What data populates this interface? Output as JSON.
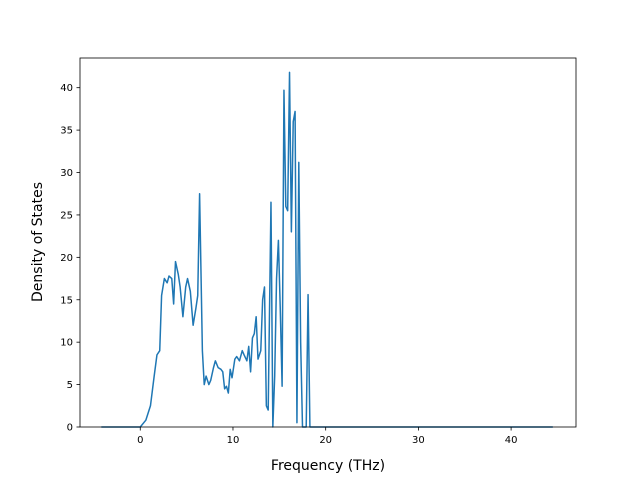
{
  "chart_data": {
    "type": "line",
    "title": "",
    "xlabel": "Frequency (THz)",
    "ylabel": "Density of States",
    "xlim": [
      -6.5,
      47
    ],
    "ylim": [
      0,
      43.5
    ],
    "xticks": [
      0,
      10,
      20,
      30,
      40
    ],
    "yticks": [
      0,
      5,
      10,
      15,
      20,
      25,
      30,
      35,
      40
    ],
    "grid": false,
    "legend": "none",
    "line_color": "#1f77b4",
    "series": [
      {
        "x": [
          -4.2,
          0.0,
          0.6,
          1.1,
          1.5,
          1.8,
          2.1,
          2.3,
          2.6,
          2.9,
          3.1,
          3.4,
          3.6,
          3.8,
          4.1,
          4.3,
          4.6,
          4.9,
          5.1,
          5.4,
          5.7,
          6.0,
          6.2,
          6.4,
          6.7,
          6.9,
          7.1,
          7.4,
          7.6,
          7.9,
          8.1,
          8.4,
          8.7,
          8.9,
          9.1,
          9.3,
          9.5,
          9.7,
          9.9,
          10.2,
          10.4,
          10.7,
          11.0,
          11.2,
          11.5,
          11.7,
          11.9,
          12.1,
          12.3,
          12.5,
          12.7,
          13.0,
          13.2,
          13.4,
          13.6,
          13.8,
          14.1,
          14.3,
          14.5,
          14.7,
          14.9,
          15.1,
          15.3,
          15.5,
          15.7,
          15.9,
          16.1,
          16.3,
          16.5,
          16.7,
          16.9,
          17.1,
          17.3,
          17.5,
          17.7,
          17.9,
          18.1,
          18.3,
          18.5,
          18.7,
          18.9,
          19.1,
          19.3,
          19.5,
          19.7,
          20.5,
          30.0,
          44.5
        ],
        "y": [
          0,
          0,
          0.8,
          2.5,
          6.0,
          8.5,
          9.0,
          15.5,
          17.5,
          17.0,
          17.8,
          17.5,
          14.5,
          19.5,
          18.0,
          16.5,
          13.0,
          16.5,
          17.5,
          16.0,
          12.0,
          14.0,
          15.5,
          27.5,
          9.0,
          5.0,
          6.0,
          5.0,
          5.5,
          7.0,
          7.8,
          7.0,
          6.8,
          6.5,
          4.5,
          4.8,
          4.0,
          6.8,
          5.8,
          8.0,
          8.3,
          7.8,
          9.0,
          8.5,
          7.8,
          9.5,
          6.5,
          10.5,
          11.0,
          13.0,
          8.0,
          9.0,
          15.0,
          16.5,
          2.5,
          2.0,
          26.5,
          0.0,
          6.0,
          17.5,
          22.0,
          14.0,
          4.8,
          39.7,
          26.0,
          25.5,
          41.8,
          23.0,
          36.0,
          37.2,
          0.5,
          31.2,
          10.0,
          0,
          0,
          0,
          15.6,
          0,
          0,
          0,
          0,
          0,
          0,
          0,
          0,
          0,
          0,
          0
        ]
      }
    ]
  }
}
